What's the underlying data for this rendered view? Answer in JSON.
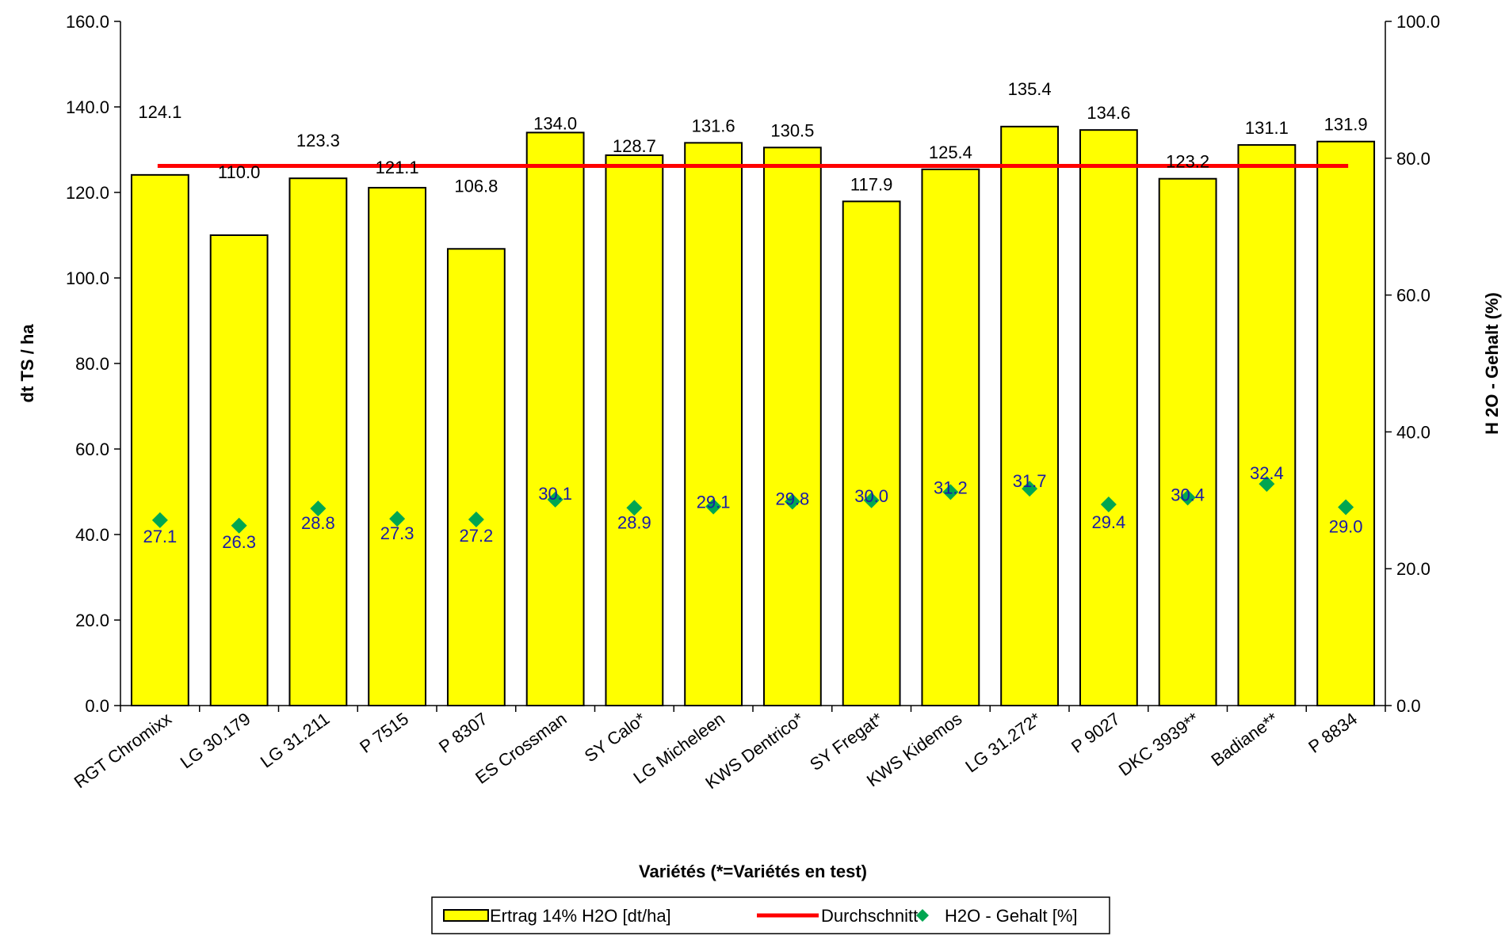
{
  "colors": {
    "bar_fill": "#ffff00",
    "bar_stroke": "#000000",
    "average_line": "#ff0000",
    "marker": "#00a651",
    "h2o_label": "#1a1aa6"
  },
  "chart_data": {
    "type": "bar",
    "xlabel": "Variétés (*=Variétés en test)",
    "ylabel": "dt TS / ha",
    "y2label": "H 2O - Gehalt (%)",
    "ylim": [
      0,
      160
    ],
    "y2lim": [
      0,
      100
    ],
    "yticks": [
      "0.0",
      "20.0",
      "40.0",
      "60.0",
      "80.0",
      "100.0",
      "120.0",
      "140.0",
      "160.0"
    ],
    "y2ticks": [
      "0.0",
      "20.0",
      "40.0",
      "60.0",
      "80.0",
      "100.0"
    ],
    "grid": false,
    "legend_position": "bottom",
    "categories": [
      "RGT Chromixx",
      "LG 30.179",
      "LG 31.211",
      "P 7515",
      "P 8307",
      "ES Crossman",
      "SY Calo*",
      "LG Micheleen",
      "KWS Dentrico*",
      "SY Fregat*",
      "KWS Kidemos",
      "LG 31.272*",
      "P 9027",
      "DKC 3939**",
      "Badiane**",
      "P 8834"
    ],
    "series": [
      {
        "name": "Ertrag 14% H2O [dt/ha]",
        "kind": "bar",
        "axis": "left",
        "values": [
          124.1,
          110.0,
          123.3,
          121.1,
          106.8,
          134.0,
          128.7,
          131.6,
          130.5,
          117.9,
          125.4,
          135.4,
          134.6,
          123.2,
          131.1,
          131.9
        ],
        "labels": [
          "124.1",
          "110.0",
          "123.3",
          "121.1",
          "106.8",
          "134.0",
          "128.7",
          "131.6",
          "130.5",
          "117.9",
          "125.4",
          "135.4",
          "134.6",
          "123.2",
          "131.1",
          "131.9"
        ]
      },
      {
        "name": "Durchschnitt",
        "kind": "line",
        "axis": "left",
        "value": 126.2
      },
      {
        "name": "H2O - Gehalt [%]",
        "kind": "scatter",
        "axis": "right",
        "values": [
          27.1,
          26.3,
          28.8,
          27.3,
          27.2,
          30.1,
          28.9,
          29.1,
          29.8,
          30.0,
          31.2,
          31.7,
          29.4,
          30.4,
          32.4,
          29.0
        ],
        "labels": [
          "27.1",
          "26.3",
          "28.8",
          "27.3",
          "27.2",
          "30.1",
          "28.9",
          "29.1",
          "29.8",
          "30.0",
          "31.2",
          "31.7",
          "29.4",
          "30.4",
          "32.4",
          "29.0"
        ]
      }
    ]
  }
}
